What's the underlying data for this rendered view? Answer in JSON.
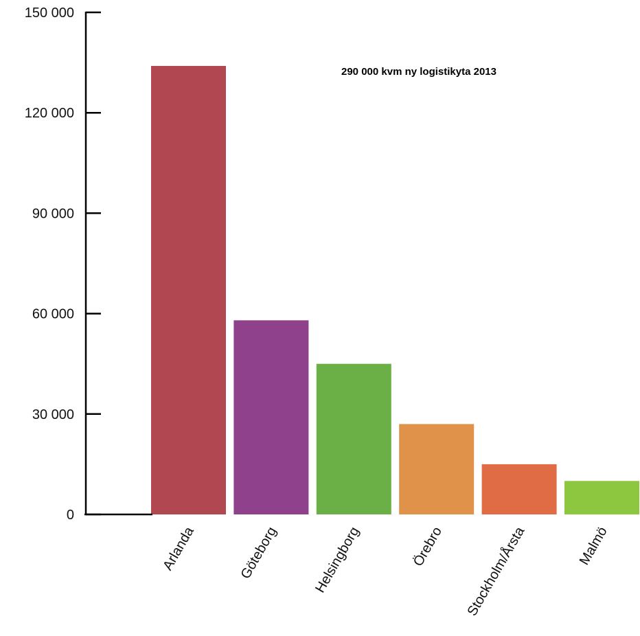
{
  "chart_data": {
    "type": "bar",
    "title": "290 000 kvm ny logistikyta 2013",
    "xlabel": "",
    "ylabel": "",
    "ylim": [
      0,
      150000
    ],
    "y_ticks": [
      0,
      30000,
      60000,
      90000,
      120000,
      150000
    ],
    "y_tick_labels": [
      "0",
      "30 000",
      "60 000",
      "90 000",
      "120 000",
      "150 000"
    ],
    "grid": false,
    "legend": "none",
    "categories": [
      "Arlanda",
      "Göteborg",
      "Helsingborg",
      "Örebro",
      "Stockholm/Årsta",
      "Malmö"
    ],
    "values": [
      134000,
      58000,
      45000,
      27000,
      15000,
      10000
    ],
    "colors": [
      "#b04751",
      "#8f418b",
      "#6ab046",
      "#e0914a",
      "#e06c46",
      "#8dc63f"
    ]
  }
}
